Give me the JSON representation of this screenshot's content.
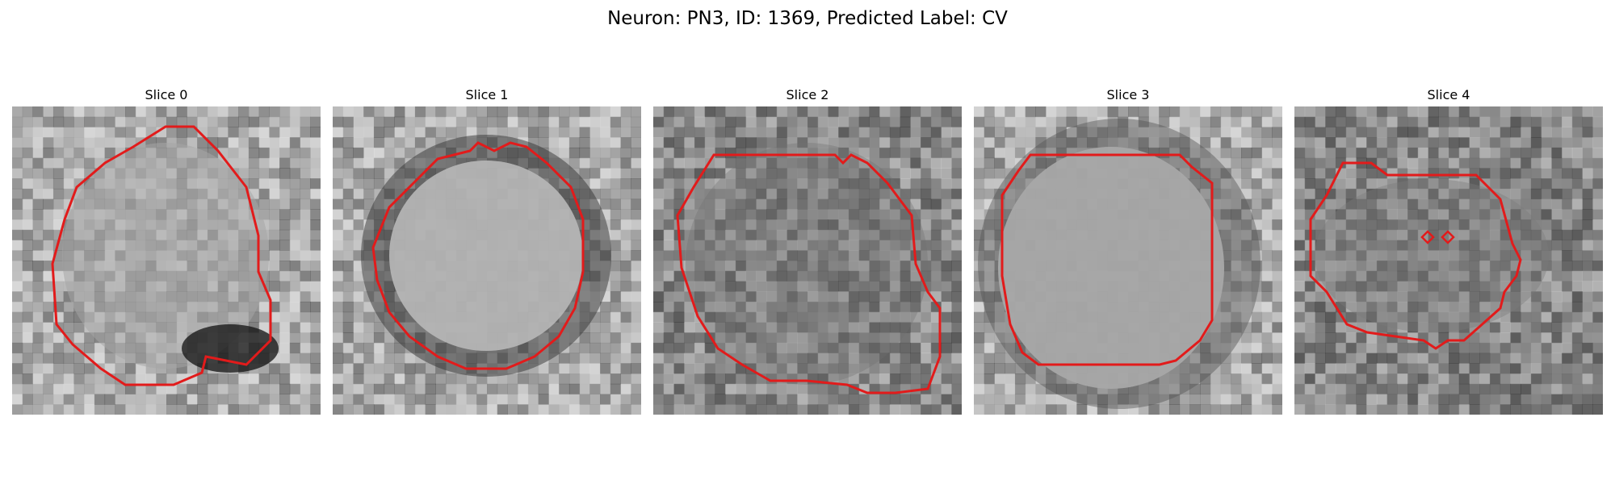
{
  "figure": {
    "title": "Neuron: PN3, ID: 1369, Predicted Label: CV"
  },
  "panels": [
    {
      "title": "Slice 0",
      "icon": "grayscale-slice-image",
      "contour_color": "#e21b1b"
    },
    {
      "title": "Slice 1",
      "icon": "grayscale-slice-image",
      "contour_color": "#e21b1b"
    },
    {
      "title": "Slice 2",
      "icon": "grayscale-slice-image",
      "contour_color": "#e21b1b"
    },
    {
      "title": "Slice 3",
      "icon": "grayscale-slice-image",
      "contour_color": "#e21b1b"
    },
    {
      "title": "Slice 4",
      "icon": "grayscale-slice-image",
      "contour_color": "#e21b1b"
    }
  ]
}
